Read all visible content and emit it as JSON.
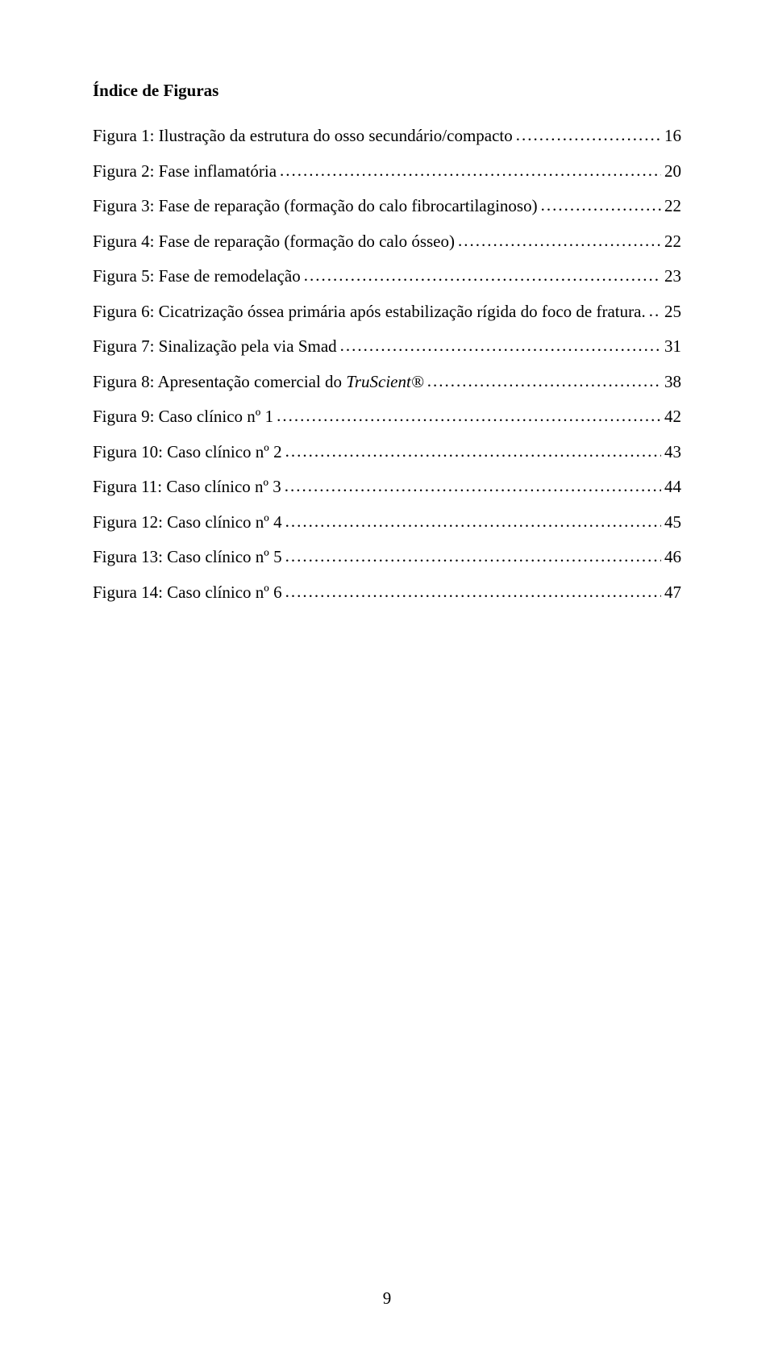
{
  "title": "Índice de Figuras",
  "entries": [
    {
      "text": "Figura 1: Ilustração da estrutura do osso secundário/compacto",
      "page": "16",
      "italic": false
    },
    {
      "text": "Figura 2: Fase inflamatória",
      "page": "20",
      "italic": false
    },
    {
      "text": "Figura 3: Fase de reparação (formação do calo fibrocartilaginoso)",
      "page": "22",
      "italic": false
    },
    {
      "text": "Figura 4: Fase de reparação (formação do calo ósseo)",
      "page": "22",
      "italic": false
    },
    {
      "text": "Figura 5: Fase de remodelação",
      "page": "23",
      "italic": false
    },
    {
      "text": "Figura 6: Cicatrização óssea primária após estabilização rígida do foco de fratura.",
      "page": "25",
      "italic": false,
      "wrap": true
    },
    {
      "text": "Figura 7: Sinalização pela via Smad",
      "page": "31",
      "italic": false
    },
    {
      "text": "Figura 8: Apresentação comercial do ",
      "italic_part": "TruScient®",
      "page": "38",
      "italic": true
    },
    {
      "text": "Figura 9: Caso clínico nº 1",
      "page": "42",
      "italic": false
    },
    {
      "text": "Figura 10: Caso clínico nº 2",
      "page": "43",
      "italic": false
    },
    {
      "text": "Figura 11: Caso clínico nº 3",
      "page": "44",
      "italic": false
    },
    {
      "text": "Figura 12: Caso clínico nº 4",
      "page": "45",
      "italic": false
    },
    {
      "text": "Figura 13: Caso clínico nº 5",
      "page": "46",
      "italic": false
    },
    {
      "text": "Figura 14: Caso clínico nº 6",
      "page": "47",
      "italic": false
    }
  ],
  "footer_page": "9"
}
